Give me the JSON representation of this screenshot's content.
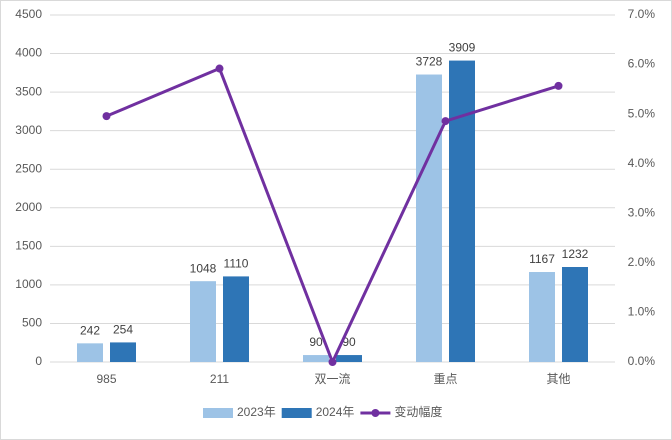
{
  "chart_data": {
    "type": "bar",
    "categories": [
      "985",
      "211",
      "双一流",
      "重点",
      "其他"
    ],
    "series": [
      {
        "name": "2023年",
        "color": "#9dc3e6",
        "values": [
          242,
          1048,
          90,
          3728,
          1167
        ]
      },
      {
        "name": "2024年",
        "color": "#2e75b6",
        "values": [
          254,
          1110,
          90,
          3909,
          1232
        ]
      },
      {
        "name": "变动幅度",
        "color": "#7030a0",
        "type": "line",
        "axis": "y2",
        "values": [
          4.96,
          5.92,
          0,
          4.86,
          5.57
        ]
      }
    ],
    "ylim": [
      0,
      4500
    ],
    "yticks": [
      0,
      500,
      1000,
      1500,
      2000,
      2500,
      3000,
      3500,
      4000,
      4500
    ],
    "y2lim": [
      0,
      7
    ],
    "y2ticks": [
      {
        "value": 0,
        "label": "0.0%"
      },
      {
        "value": 1,
        "label": "1.0%"
      },
      {
        "value": 2,
        "label": "2.0%"
      },
      {
        "value": 3,
        "label": "3.0%"
      },
      {
        "value": 4,
        "label": "4.0%"
      },
      {
        "value": 5,
        "label": "5.0%"
      },
      {
        "value": 6,
        "label": "6.0%"
      },
      {
        "value": 7,
        "label": "7.0%"
      }
    ],
    "grid": true,
    "legend": "bottom"
  }
}
